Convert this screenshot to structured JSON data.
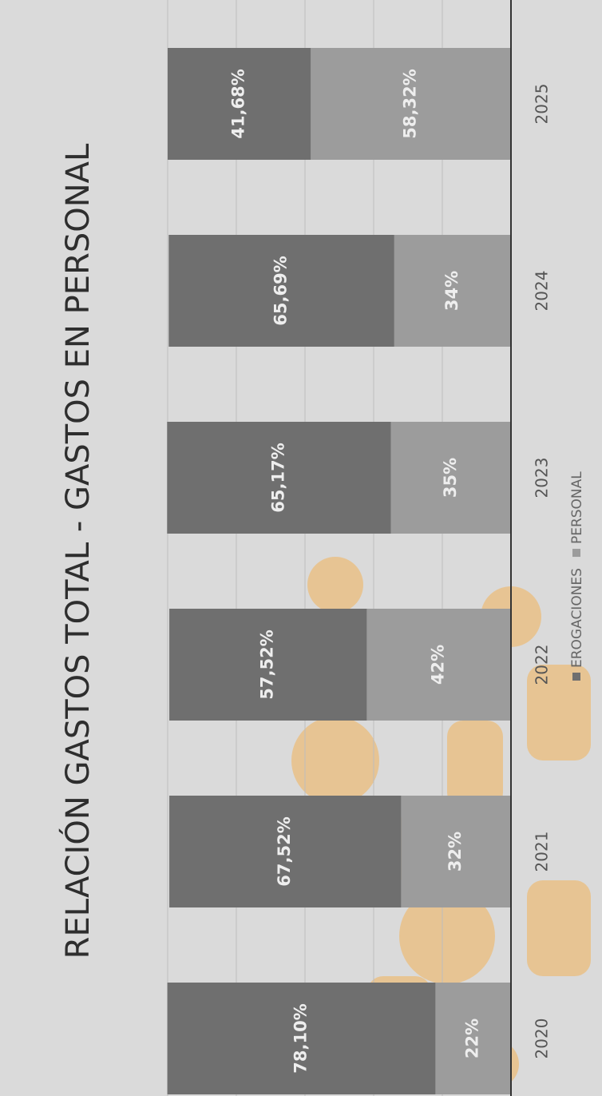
{
  "chart_data": {
    "type": "stacked_bar",
    "title": "RELACIÓN GASTOS TOTAL - GASTOS EN PERSONAL",
    "categories": [
      "2020",
      "2021",
      "2022",
      "2023",
      "2024",
      "2025"
    ],
    "series": [
      {
        "name": "PERSONAL",
        "color": "#9c9c9c",
        "values": [
          22,
          32,
          42,
          35,
          34,
          58.32
        ],
        "value_labels": [
          "22%",
          "32%",
          "42%",
          "35%",
          "34%",
          "58,32%"
        ]
      },
      {
        "name": "EROGACIONES",
        "color": "#6f6f6f",
        "values": [
          78.1,
          67.52,
          57.52,
          65.17,
          65.69,
          41.68
        ],
        "value_labels": [
          "78,10%",
          "67,52%",
          "57,52%",
          "65,17%",
          "65,69%",
          "41,68%"
        ]
      }
    ],
    "ylim": [
      0,
      100
    ],
    "grid": true,
    "legend": "bottom"
  }
}
